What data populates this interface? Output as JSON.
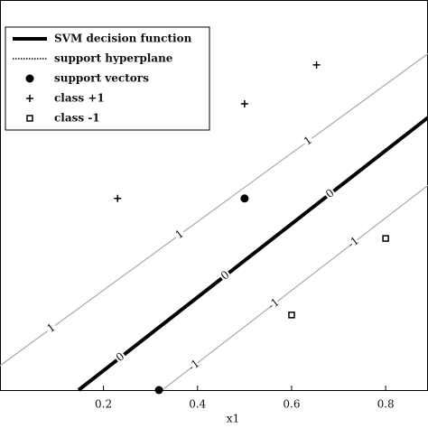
{
  "chart_data": {
    "type": "scatter",
    "xlabel": "x1",
    "xlim": [
      -0.02,
      0.89
    ],
    "ylim": [
      0,
      0.8
    ],
    "xticks": [
      0.2,
      0.4,
      0.6,
      0.8
    ],
    "lines": [
      {
        "name": "SVM decision function",
        "label": "0",
        "color": "#000000",
        "x": [
          0.147,
          0.89
        ],
        "values": [
          0,
          0.559
        ]
      },
      {
        "name": "support hyperplane",
        "label": "1",
        "color": "#aaaaaa",
        "x": [
          -0.02,
          0.89
        ],
        "values": [
          0.05,
          0.69
        ]
      },
      {
        "label": "-1",
        "color": "#aaaaaa",
        "x": [
          0.325,
          0.89
        ],
        "values": [
          0,
          0.42
        ]
      }
    ],
    "series": [
      {
        "name": "support vectors",
        "marker": "dot",
        "color": "#000000",
        "x": [
          0.5,
          0.318
        ],
        "values": [
          0.393,
          0
        ]
      },
      {
        "name": "class +1",
        "marker": "plus",
        "color": "#000000",
        "x": [
          0.653,
          0.5,
          0.23
        ],
        "values": [
          0.667,
          0.587,
          0.393
        ]
      },
      {
        "name": "class -1",
        "marker": "square",
        "color": "#000000",
        "x": [
          0.8,
          0.6
        ],
        "values": [
          0.311,
          0.154
        ]
      }
    ]
  }
}
